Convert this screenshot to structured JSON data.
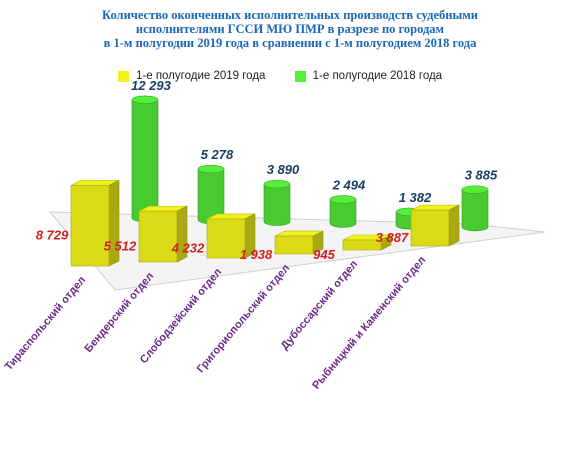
{
  "title_lines": [
    "Количество оконченных исполнительных производств судебными",
    "исполнителями ГССИ МЮ ПМР в разрезе по городам",
    "в 1-м полугодии 2019 года в сравнении с 1-м полугодием 2018 года"
  ],
  "colors": {
    "yellow": "#f2f21a",
    "green": "#55ee3a",
    "label_2019": "#d41f1f",
    "label_2018": "#1b3d66",
    "category": "#6a2b8c"
  },
  "chart_data": {
    "type": "bar",
    "categories": [
      "Тираспольский отдел",
      "Бендерский отдел",
      "Слободзейский отдел",
      "Григориопольский отдел",
      "Дубоссарский отдел",
      "Рыбницкий и Каменский отдел"
    ],
    "series": [
      {
        "name": "1-е полугодие  2019  года",
        "values": [
          8729,
          5512,
          4232,
          1938,
          945,
          3887
        ]
      },
      {
        "name": "1-е полугодие 2018  года",
        "values": [
          12293,
          5278,
          3890,
          2494,
          1382,
          3885
        ]
      }
    ],
    "value_labels": {
      "2019": [
        "8 729",
        "5 512",
        "4 232",
        "1 938",
        "945",
        "3 887"
      ],
      "2018": [
        "12 293",
        "5 278",
        "3 890",
        "2 494",
        "1 382",
        "3 885"
      ]
    },
    "legend_position": "top",
    "ylim": [
      0,
      13000
    ],
    "three_d": true
  }
}
